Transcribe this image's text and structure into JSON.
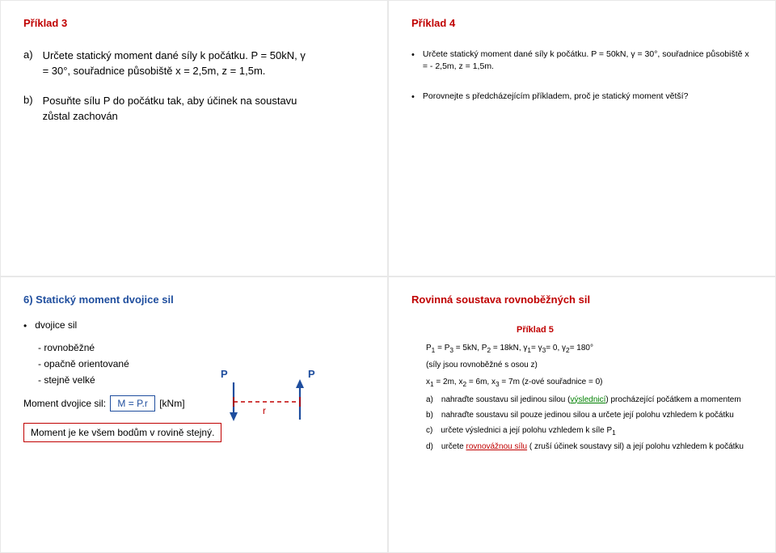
{
  "s1": {
    "title": "Příklad 3",
    "a_letter": "a)",
    "a_text": "Určete statický moment dané síly k počátku. P = 50kN, γ = 30°, souřadnice působiště x = 2,5m, z = 1,5m.",
    "b_letter": "b)",
    "b_text": "Posuňte sílu P do počátku tak, aby účinek na soustavu zůstal zachován"
  },
  "s2": {
    "title": "Příklad 4",
    "bul1": "Určete statický moment dané síly k počátku. P = 50kN, γ = 30°, souřadnice působiště x = - 2,5m, z = 1,5m.",
    "bul2": "Porovnejte s předcházejícím příkladem, proč je statický moment větší?"
  },
  "s3": {
    "title": "6) Statický moment dvojice sil",
    "b1": "dvojice sil",
    "sub1": "- rovnoběžné",
    "sub2": "- opačně orientované",
    "sub3": "- stejně velké",
    "mom_label": "Moment dvojice sil:",
    "mom_box": "M = P.r",
    "mom_unit": "[kNm]",
    "note": "Moment je ke všem bodům v rovině stejný.",
    "P": "P",
    "r": "r"
  },
  "s4": {
    "title": "Rovinná soustava rovnoběžných sil",
    "subtitle": "Příklad 5",
    "p1_html": "P<sub>1</sub> = P<sub>3</sub> = 5kN, P<sub>2</sub> = 18kN, γ<sub>1</sub>= γ<sub>3</sub>= 0, γ<sub>2</sub>= 180°",
    "p2": "(síly jsou rovnoběžné s osou z)",
    "p3_html": "x<sub>1</sub> = 2m, x<sub>2</sub> = 6m, x<sub>3</sub> = 7m (z-ové souřadnice = 0)",
    "a_tag": "a)",
    "a_html": "nahraďte soustavu sil jedinou silou (<span class='green-ul'>výslednicí</span>) procházející počátkem a momentem",
    "b_tag": "b)",
    "b_txt": "nahraďte soustavu sil pouze jedinou silou a určete její polohu vzhledem k počátku",
    "c_tag": "c)",
    "c_html": "určete výslednici a její polohu vzhledem k síle P<sub>1</sub>",
    "d_tag": "d)",
    "d_html": "určete <span class='red-ul'>rovnovážnou sílu</span> ( zruší účinek soustavy sil) a její polohu vzhledem k počátku"
  }
}
